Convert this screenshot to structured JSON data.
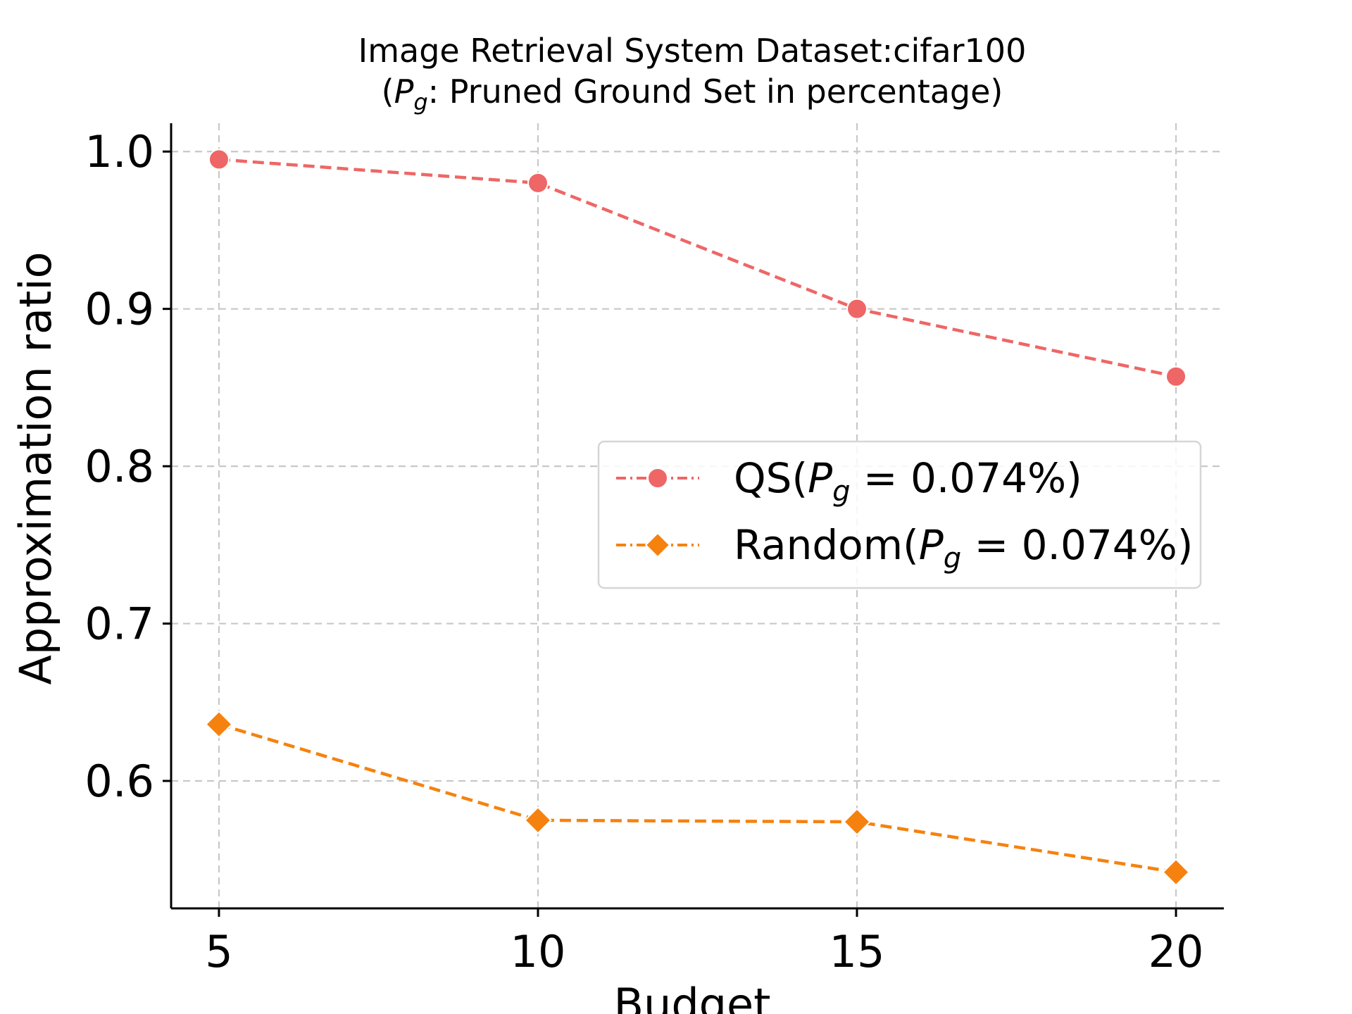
{
  "chart_data": {
    "type": "line",
    "title_line1": "Image Retrieval System Dataset:cifar100",
    "title_line2_prefix": "(",
    "title_line2_var": "P",
    "title_line2_sub": "g",
    "title_line2_suffix": ": Pruned Ground Set in percentage)",
    "xlabel": "Budget",
    "ylabel": "Approximation ratio",
    "x": [
      5,
      10,
      15,
      20
    ],
    "xlim": [
      4.25,
      20.75
    ],
    "ylim": [
      0.519,
      1.018
    ],
    "xticks": [
      5,
      10,
      15,
      20
    ],
    "yticks": [
      0.6,
      0.7,
      0.8,
      0.9,
      1.0
    ],
    "ytick_labels": [
      "0.6",
      "0.7",
      "0.8",
      "0.9",
      "1.0"
    ],
    "grid": true,
    "legend_position": "center-right",
    "series": [
      {
        "name_prefix": "QS(",
        "name_var": "P",
        "name_sub": "g",
        "name_suffix": " = 0.074%)",
        "values": [
          0.995,
          0.98,
          0.9,
          0.857
        ],
        "color": "#ef6666",
        "marker": "circle"
      },
      {
        "name_prefix": "Random(",
        "name_var": "P",
        "name_sub": "g",
        "name_suffix": " = 0.074%)",
        "values": [
          0.636,
          0.575,
          0.574,
          0.542
        ],
        "color": "#f5820f",
        "marker": "diamond"
      }
    ]
  }
}
